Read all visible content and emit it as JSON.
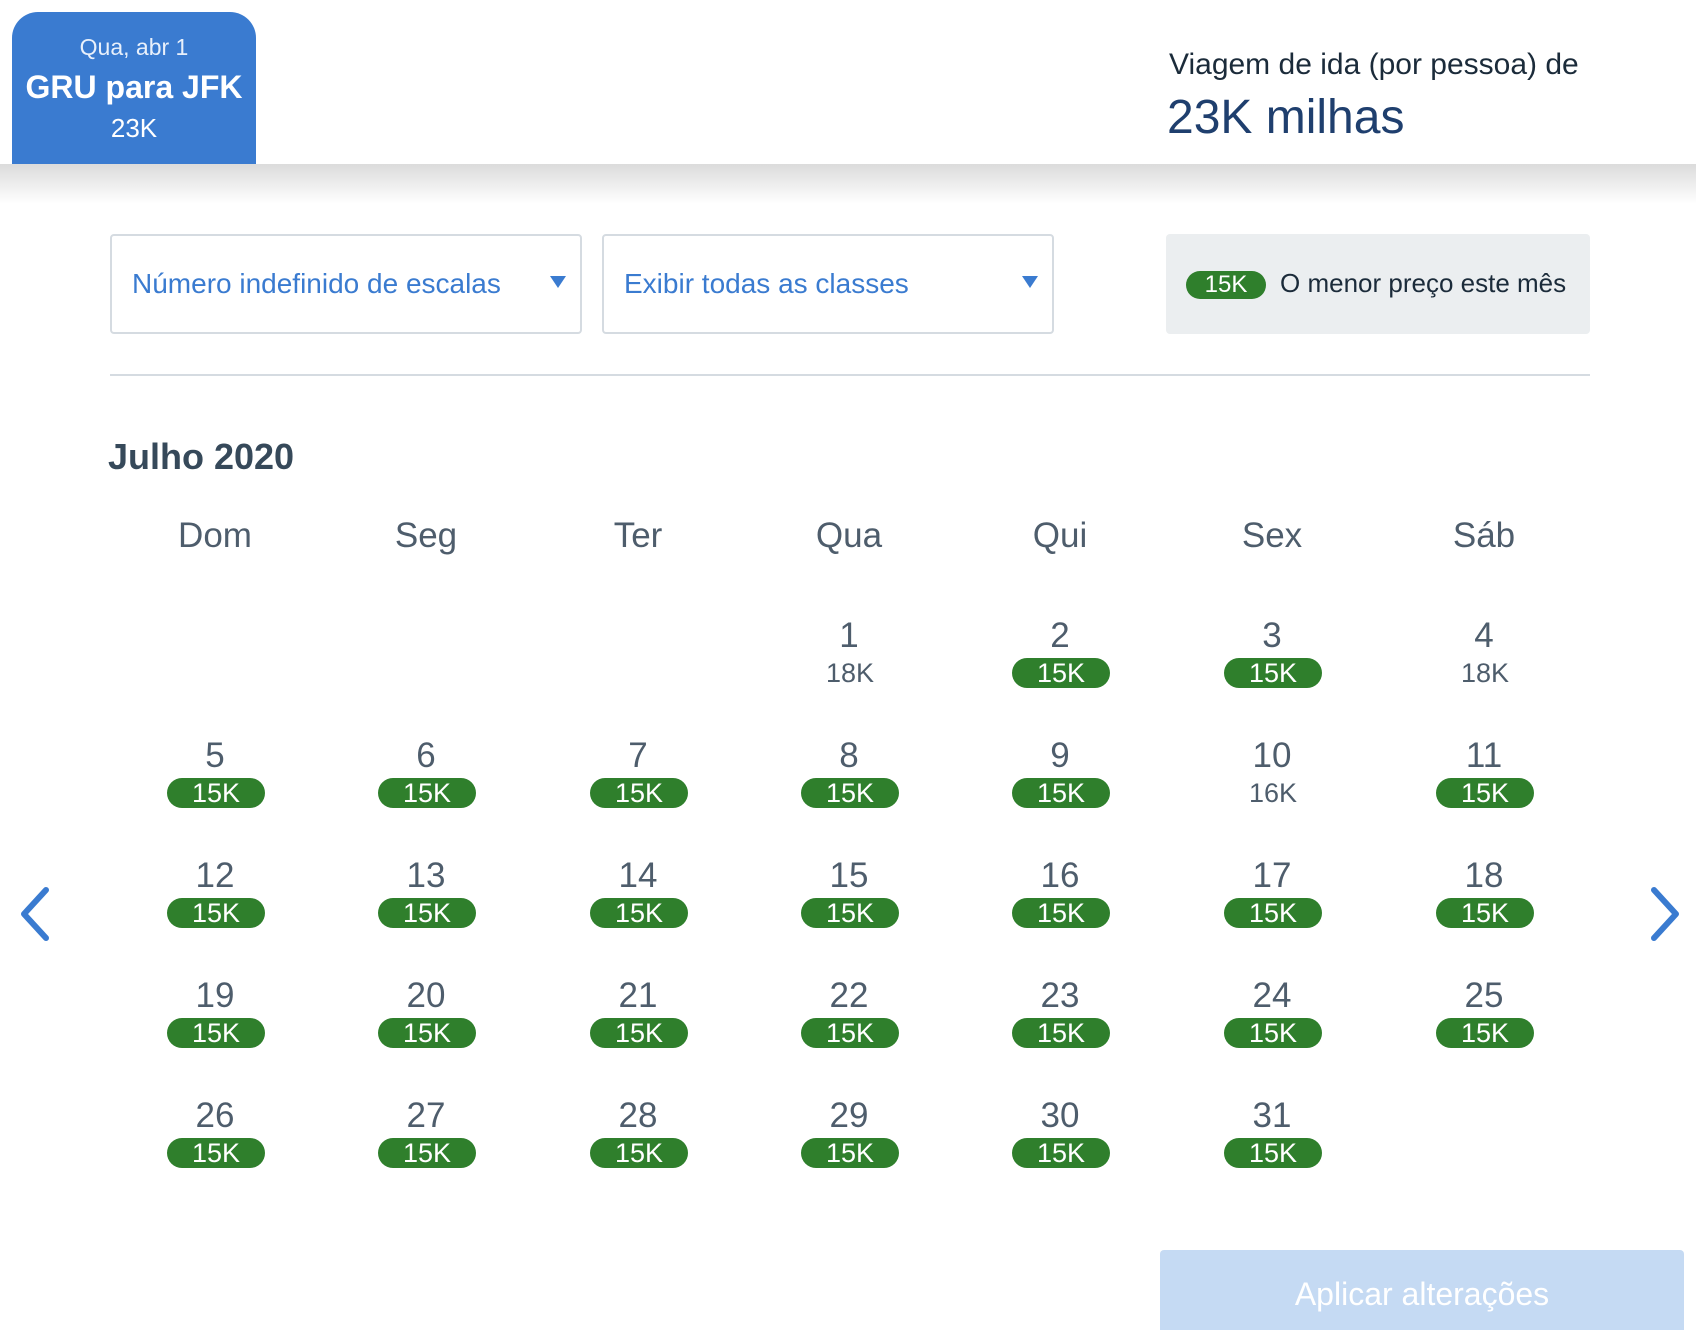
{
  "header": {
    "tab": {
      "date": "Qua, abr 1",
      "route": "GRU para JFK",
      "price": "23K"
    },
    "oneway_label": "Viagem de ida (por pessoa) de",
    "oneway_price": "23K milhas"
  },
  "filters": {
    "stops": {
      "value": "Número indefinido de escalas"
    },
    "classes": {
      "value": "Exibir todas as classes"
    }
  },
  "legend": {
    "pill": "15K",
    "text": "O menor preço este mês"
  },
  "calendar": {
    "month": "Julho 2020",
    "weekdays": [
      "Dom",
      "Seg",
      "Ter",
      "Qua",
      "Qui",
      "Sex",
      "Sáb"
    ],
    "days": [
      {
        "day": "1",
        "price": "18K",
        "lowest": false
      },
      {
        "day": "2",
        "price": "15K",
        "lowest": true
      },
      {
        "day": "3",
        "price": "15K",
        "lowest": true
      },
      {
        "day": "4",
        "price": "18K",
        "lowest": false
      },
      {
        "day": "5",
        "price": "15K",
        "lowest": true
      },
      {
        "day": "6",
        "price": "15K",
        "lowest": true
      },
      {
        "day": "7",
        "price": "15K",
        "lowest": true
      },
      {
        "day": "8",
        "price": "15K",
        "lowest": true
      },
      {
        "day": "9",
        "price": "15K",
        "lowest": true
      },
      {
        "day": "10",
        "price": "16K",
        "lowest": false
      },
      {
        "day": "11",
        "price": "15K",
        "lowest": true
      },
      {
        "day": "12",
        "price": "15K",
        "lowest": true
      },
      {
        "day": "13",
        "price": "15K",
        "lowest": true
      },
      {
        "day": "14",
        "price": "15K",
        "lowest": true
      },
      {
        "day": "15",
        "price": "15K",
        "lowest": true
      },
      {
        "day": "16",
        "price": "15K",
        "lowest": true
      },
      {
        "day": "17",
        "price": "15K",
        "lowest": true
      },
      {
        "day": "18",
        "price": "15K",
        "lowest": true
      },
      {
        "day": "19",
        "price": "15K",
        "lowest": true
      },
      {
        "day": "20",
        "price": "15K",
        "lowest": true
      },
      {
        "day": "21",
        "price": "15K",
        "lowest": true
      },
      {
        "day": "22",
        "price": "15K",
        "lowest": true
      },
      {
        "day": "23",
        "price": "15K",
        "lowest": true
      },
      {
        "day": "24",
        "price": "15K",
        "lowest": true
      },
      {
        "day": "25",
        "price": "15K",
        "lowest": true
      },
      {
        "day": "26",
        "price": "15K",
        "lowest": true
      },
      {
        "day": "27",
        "price": "15K",
        "lowest": true
      },
      {
        "day": "28",
        "price": "15K",
        "lowest": true
      },
      {
        "day": "29",
        "price": "15K",
        "lowest": true
      },
      {
        "day": "30",
        "price": "15K",
        "lowest": true
      },
      {
        "day": "31",
        "price": "15K",
        "lowest": true
      }
    ]
  },
  "apply_button": "Aplicar alterações",
  "colors": {
    "accent": "#3a7bd0",
    "lowest_price": "#2f7f2c",
    "apply_disabled": "#c5daf3"
  },
  "icons": {
    "prev": "chevron-left-icon",
    "next": "chevron-right-icon",
    "dropdown": "caret-down-icon"
  }
}
